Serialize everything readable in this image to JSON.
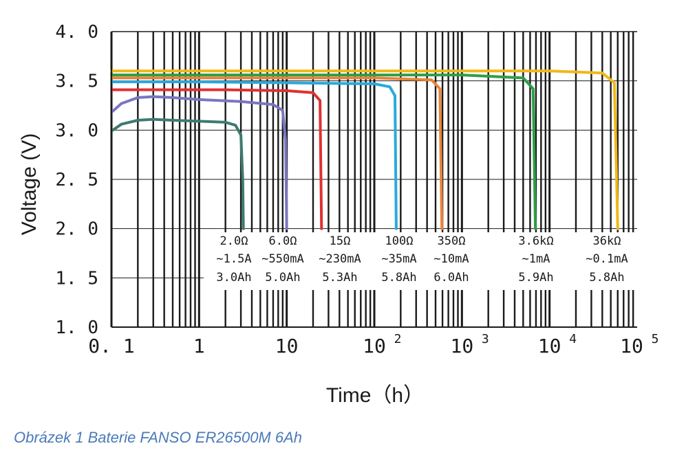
{
  "chart_data": {
    "type": "line",
    "xlabel": "Time（h）",
    "ylabel": "Voltage (V)",
    "xscale": "log",
    "xlim": [
      0.1,
      100000
    ],
    "ylim": [
      1.0,
      4.0
    ],
    "grid": true,
    "y_ticks": [
      "1. 0",
      "1. 5",
      "2. 0",
      "2. 5",
      "3. 0",
      "3. 5",
      "4. 0"
    ],
    "x_ticks": [
      {
        "value": 0.1,
        "base": "0. 1",
        "exp": ""
      },
      {
        "value": 1,
        "base": "1",
        "exp": ""
      },
      {
        "value": 10,
        "base": "10",
        "exp": ""
      },
      {
        "value": 100,
        "base": "10",
        "exp": "2"
      },
      {
        "value": 1000,
        "base": "10",
        "exp": "3"
      },
      {
        "value": 10000,
        "base": "10",
        "exp": "4"
      },
      {
        "value": 100000,
        "base": "10",
        "exp": "5"
      }
    ],
    "series": [
      {
        "color": "#3e7a6e",
        "load": "2.0Ω",
        "current": "∼1.5A",
        "capacity": "3.0Ah",
        "x": [
          0.1,
          0.13,
          0.2,
          0.3,
          0.5,
          1,
          2,
          2.6,
          3.0,
          3.15,
          3.2
        ],
        "y": [
          2.99,
          3.06,
          3.1,
          3.11,
          3.1,
          3.09,
          3.08,
          3.05,
          2.95,
          2.5,
          2.0
        ]
      },
      {
        "color": "#7b75c2",
        "load": "6.0Ω",
        "current": "∼550mA",
        "capacity": "5.0Ah",
        "x": [
          0.1,
          0.13,
          0.2,
          0.3,
          0.5,
          1,
          3,
          7,
          9,
          9.7,
          10
        ],
        "y": [
          3.18,
          3.27,
          3.33,
          3.34,
          3.33,
          3.31,
          3.29,
          3.26,
          3.2,
          2.9,
          2.0
        ]
      },
      {
        "color": "#e03030",
        "load": "15Ω",
        "current": "∼230mA",
        "capacity": "5.3Ah",
        "x": [
          0.1,
          0.5,
          2,
          10,
          20,
          24,
          25
        ],
        "y": [
          3.41,
          3.41,
          3.41,
          3.4,
          3.38,
          3.3,
          2.0
        ]
      },
      {
        "color": "#29aadc",
        "load": "100Ω",
        "current": "∼35mA",
        "capacity": "5.8Ah",
        "x": [
          0.1,
          1,
          10,
          100,
          150,
          172,
          178
        ],
        "y": [
          3.49,
          3.49,
          3.48,
          3.47,
          3.44,
          3.35,
          2.0
        ]
      },
      {
        "color": "#e8843a",
        "load": "350Ω",
        "current": "∼10mA",
        "capacity": "6.0Ah",
        "x": [
          0.1,
          1,
          10,
          100,
          450,
          560,
          590
        ],
        "y": [
          3.53,
          3.53,
          3.53,
          3.53,
          3.51,
          3.42,
          2.0
        ]
      },
      {
        "color": "#2e9e48",
        "load": "3.6kΩ",
        "current": "∼1mA",
        "capacity": "5.9Ah",
        "x": [
          0.1,
          1,
          10,
          100,
          1000,
          5000,
          6500,
          6900
        ],
        "y": [
          3.56,
          3.56,
          3.56,
          3.56,
          3.56,
          3.53,
          3.42,
          2.0
        ]
      },
      {
        "color": "#f2b818",
        "load": "36kΩ",
        "current": "∼0.1mA",
        "capacity": "5.8Ah",
        "x": [
          0.1,
          1,
          10,
          100,
          1000,
          10000,
          40000,
          55000,
          60000
        ],
        "y": [
          3.6,
          3.6,
          3.6,
          3.6,
          3.6,
          3.6,
          3.58,
          3.48,
          2.0
        ]
      }
    ]
  },
  "caption": "Obrázek 1 Baterie FANSO ER26500M 6Ah"
}
